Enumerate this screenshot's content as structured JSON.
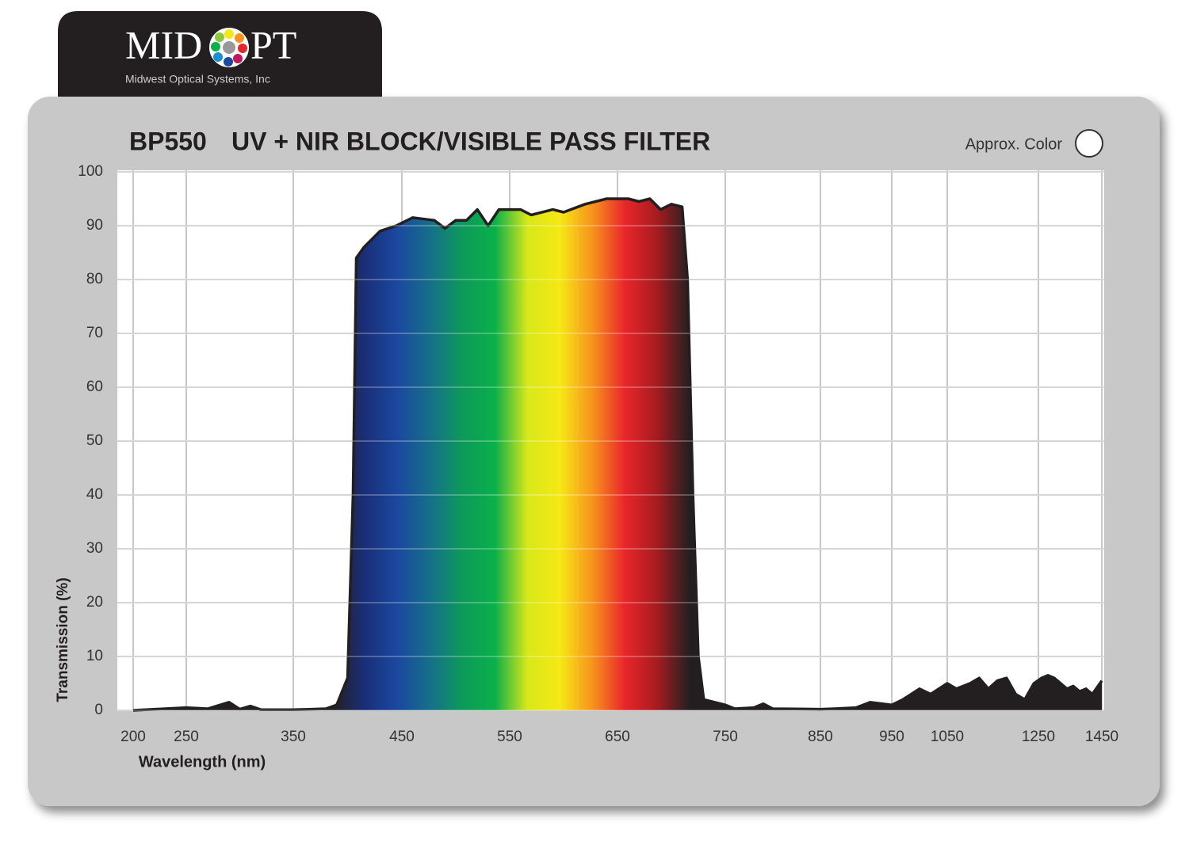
{
  "logo": {
    "left": "MID",
    "right": "PT",
    "tagline": "Midwest Optical Systems, Inc"
  },
  "chart_data": {
    "type": "area",
    "filter_code": "BP550",
    "title": "UV + NIR BLOCK/VISIBLE PASS FILTER",
    "color_note": "Approx. Color",
    "xlabel": "Wavelength (nm)",
    "ylabel": "Transmission (%)",
    "x": [
      200,
      230,
      250,
      270,
      290,
      300,
      310,
      320,
      350,
      380,
      390,
      400,
      405,
      408,
      415,
      430,
      445,
      460,
      480,
      490,
      500,
      510,
      520,
      530,
      540,
      560,
      570,
      590,
      600,
      620,
      640,
      660,
      670,
      680,
      690,
      700,
      710,
      715,
      720,
      725,
      730,
      750,
      760,
      780,
      790,
      800,
      850,
      870,
      900,
      920,
      950,
      970,
      1000,
      1020,
      1050,
      1070,
      1100,
      1120,
      1140,
      1160,
      1180,
      1200,
      1220,
      1240,
      1260,
      1280,
      1300,
      1320,
      1340,
      1360,
      1380,
      1400,
      1420,
      1450
    ],
    "values": [
      0,
      0.3,
      0.5,
      0.3,
      1.5,
      0.2,
      0.8,
      0.1,
      0.1,
      0.3,
      1,
      6,
      40,
      84,
      86,
      89,
      90,
      91.5,
      91,
      89.5,
      91,
      91,
      93,
      90,
      93,
      93,
      92,
      93,
      92.5,
      94,
      95,
      95,
      94.5,
      95,
      93,
      94,
      93.5,
      80,
      40,
      10,
      2,
      1,
      0.3,
      0.5,
      1.2,
      0.3,
      0.2,
      0.3,
      0.5,
      1.5,
      1,
      2,
      4,
      3,
      5,
      4,
      5,
      6,
      4,
      5.5,
      6,
      3,
      2,
      5,
      6,
      6.5,
      6,
      5,
      4,
      4.5,
      3.5,
      4,
      3,
      5.5
    ],
    "line_color": "#231f20",
    "area_colors": [
      "#231f20",
      "#1a2f7a",
      "#1b48a0",
      "#166f8a",
      "#0d9a5a",
      "#0bb04a",
      "#d8e81a",
      "#f5e815",
      "#f7941d",
      "#e8262a",
      "#a51c1f",
      "#231f20"
    ],
    "xlim": [
      200,
      1450
    ],
    "xticks": [
      200,
      250,
      350,
      450,
      550,
      650,
      750,
      850,
      950,
      1050,
      1250,
      1450
    ],
    "ylim": [
      0,
      100
    ],
    "yticks": [
      0,
      10,
      20,
      30,
      40,
      50,
      60,
      70,
      80,
      90,
      100
    ],
    "grid": true
  }
}
